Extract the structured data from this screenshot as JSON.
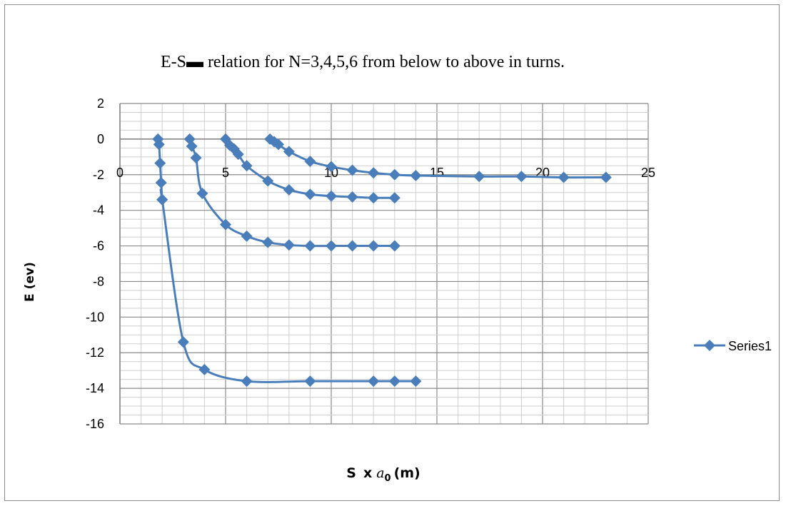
{
  "chart_data": {
    "type": "scatter",
    "title": "E-S▬ relation for N=3,4,5,6 from below to above in turns.",
    "ylabel": "E (ev)",
    "xlabel": {
      "s": "S",
      "x": "x",
      "a": "a",
      "sub": "0",
      "unit": "(m)"
    },
    "xlim": [
      0,
      25
    ],
    "ylim": [
      -16,
      2
    ],
    "x_ticks": [
      0,
      5,
      10,
      15,
      20,
      25
    ],
    "x_tick_labels": [
      "0",
      "5",
      "10",
      "15",
      "20",
      "25"
    ],
    "y_ticks": [
      2,
      0,
      -2,
      -4,
      -6,
      -8,
      -10,
      -12,
      -14,
      -16
    ],
    "y_tick_labels": [
      "2",
      "0",
      "-2",
      "-4",
      "-6",
      "-8",
      "-10",
      "-12",
      "-14",
      "-16"
    ],
    "grid": true,
    "legend_position": "right",
    "series_color": "#4a7ebb",
    "series": [
      {
        "name": "Series1",
        "curves": [
          {
            "x": [
              1.8,
              1.85,
              1.9,
              1.95,
              2.0,
              2.0,
              3.0,
              4.0,
              6.0,
              9.0,
              12.0,
              13.0,
              14.0
            ],
            "y": [
              0,
              -0.3,
              -1.35,
              -2.45,
              -3.4,
              -3.4,
              -11.4,
              -12.95,
              -13.6,
              -13.6,
              -13.6,
              -13.6,
              -13.6
            ]
          },
          {
            "x": [
              3.3,
              3.4,
              3.6,
              3.9,
              5.0,
              6.0,
              7.0,
              8.0,
              9.0,
              10.0,
              11.0,
              12.0,
              13.0
            ],
            "y": [
              0,
              -0.4,
              -1.05,
              -3.05,
              -4.8,
              -5.45,
              -5.8,
              -5.95,
              -6.0,
              -6.0,
              -6.0,
              -6.0,
              -6.0
            ]
          },
          {
            "x": [
              5.0,
              5.2,
              5.4,
              5.6,
              6.0,
              7.0,
              8.0,
              9.0,
              10.0,
              11.0,
              12.0,
              13.0
            ],
            "y": [
              0,
              -0.35,
              -0.55,
              -0.85,
              -1.5,
              -2.35,
              -2.85,
              -3.1,
              -3.2,
              -3.25,
              -3.3,
              -3.3
            ]
          },
          {
            "x": [
              7.1,
              7.3,
              7.5,
              8.0,
              9.0,
              10.0,
              11.0,
              12.0,
              13.0,
              14.0,
              17.0,
              19.0,
              21.0,
              23.0
            ],
            "y": [
              0,
              -0.15,
              -0.3,
              -0.7,
              -1.25,
              -1.55,
              -1.75,
              -1.9,
              -2.0,
              -2.05,
              -2.1,
              -2.1,
              -2.15,
              -2.15
            ]
          }
        ]
      }
    ]
  }
}
